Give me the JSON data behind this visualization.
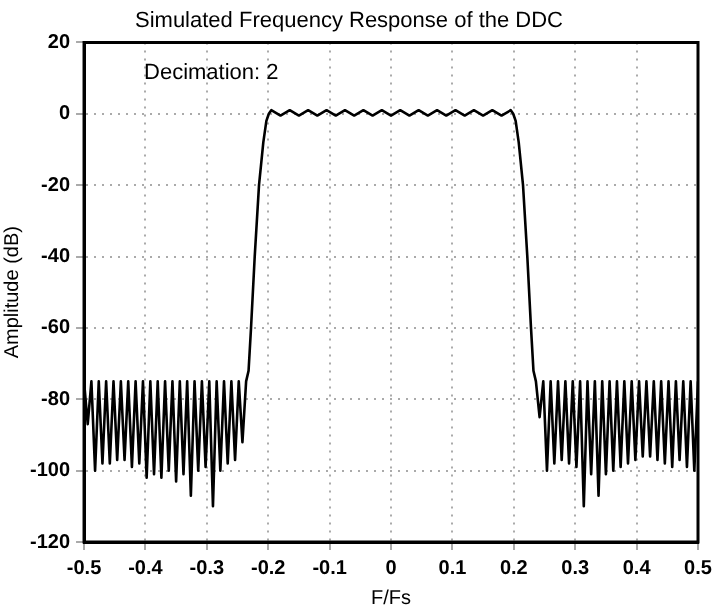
{
  "chart_data": {
    "type": "line",
    "title": "Simulated Frequency Response of the DDC",
    "xlabel": "F/Fs",
    "ylabel": "Amplitude (dB)",
    "annotations": [
      "Decimation: 2"
    ],
    "xlim": [
      -0.5,
      0.5
    ],
    "xticks": [
      -0.5,
      -0.4,
      -0.3,
      -0.2,
      -0.1,
      0,
      0.1,
      0.2,
      0.3,
      0.4,
      0.5
    ],
    "ylim": [
      -120,
      20
    ],
    "yticks": [
      -120,
      -100,
      -80,
      -60,
      -40,
      -20,
      0,
      20
    ],
    "grid": true,
    "marker": "none",
    "series": [
      {
        "color": "#000000",
        "x": [
          -0.5,
          -0.494,
          -0.488,
          -0.482,
          -0.476,
          -0.47,
          -0.464,
          -0.458,
          -0.452,
          -0.446,
          -0.44,
          -0.434,
          -0.428,
          -0.422,
          -0.416,
          -0.41,
          -0.404,
          -0.398,
          -0.392,
          -0.386,
          -0.38,
          -0.374,
          -0.368,
          -0.362,
          -0.356,
          -0.35,
          -0.344,
          -0.338,
          -0.332,
          -0.326,
          -0.32,
          -0.314,
          -0.308,
          -0.302,
          -0.296,
          -0.29,
          -0.284,
          -0.278,
          -0.272,
          -0.266,
          -0.26,
          -0.254,
          -0.248,
          -0.242,
          -0.236,
          -0.232,
          -0.228,
          -0.222,
          -0.215,
          -0.208,
          -0.203,
          -0.199,
          -0.195,
          -0.18,
          -0.165,
          -0.15,
          -0.135,
          -0.12,
          -0.105,
          -0.09,
          -0.075,
          -0.06,
          -0.045,
          -0.03,
          -0.015,
          0,
          0.015,
          0.03,
          0.045,
          0.06,
          0.075,
          0.09,
          0.105,
          0.12,
          0.135,
          0.15,
          0.165,
          0.18,
          0.195,
          0.199,
          0.203,
          0.208,
          0.215,
          0.222,
          0.228,
          0.232,
          0.236,
          0.242,
          0.248,
          0.254,
          0.26,
          0.266,
          0.272,
          0.278,
          0.284,
          0.29,
          0.296,
          0.302,
          0.308,
          0.314,
          0.32,
          0.326,
          0.332,
          0.338,
          0.344,
          0.35,
          0.356,
          0.362,
          0.368,
          0.374,
          0.38,
          0.386,
          0.392,
          0.398,
          0.404,
          0.41,
          0.416,
          0.422,
          0.428,
          0.434,
          0.44,
          0.446,
          0.452,
          0.458,
          0.464,
          0.47,
          0.476,
          0.482,
          0.488,
          0.494,
          0.5
        ],
        "values": [
          -75,
          -87,
          -75,
          -100,
          -75,
          -98,
          -75,
          -98,
          -75,
          -97,
          -75,
          -97,
          -75,
          -99,
          -75,
          -98,
          -75,
          -102,
          -75,
          -101,
          -75,
          -102,
          -75,
          -100,
          -75,
          -103,
          -75,
          -101,
          -75,
          -107,
          -75,
          -100,
          -75,
          -99,
          -75,
          -110,
          -75,
          -100,
          -75,
          -98,
          -75,
          -97,
          -75,
          -92,
          -75,
          -72,
          -60,
          -40,
          -20,
          -8,
          -2,
          0,
          1,
          -0.5,
          1,
          -0.5,
          1,
          -0.5,
          1,
          -0.5,
          1,
          -0.5,
          1,
          -0.5,
          1,
          -0.5,
          1,
          -0.5,
          1,
          -0.5,
          1,
          -0.5,
          1,
          -0.5,
          1,
          -0.5,
          1,
          -0.5,
          1,
          0,
          -2,
          -8,
          -20,
          -40,
          -60,
          -72,
          -75,
          -85,
          -75,
          -100,
          -75,
          -98,
          -75,
          -97,
          -75,
          -98,
          -75,
          -99,
          -75,
          -110,
          -75,
          -101,
          -75,
          -107,
          -75,
          -101,
          -75,
          -100,
          -75,
          -99,
          -75,
          -98,
          -75,
          -97,
          -75,
          -96,
          -75,
          -96,
          -75,
          -97,
          -75,
          -98,
          -75,
          -99,
          -75,
          -97,
          -75,
          -99,
          -75,
          -100,
          -75
        ]
      }
    ]
  }
}
